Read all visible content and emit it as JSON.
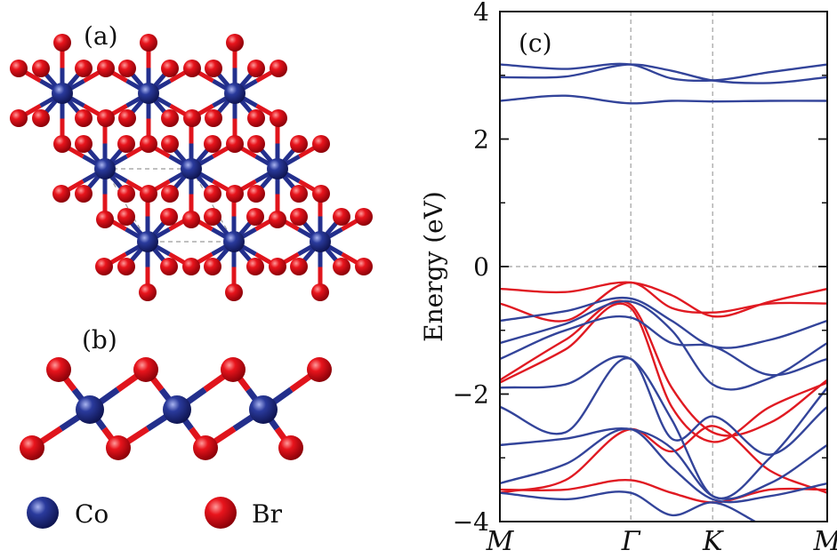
{
  "panels": {
    "a": "(a)",
    "b": "(b)",
    "c": "(c)"
  },
  "legend": [
    {
      "label": "Co",
      "color": "#232f8c"
    },
    {
      "label": "Br",
      "color": "#e0141c"
    }
  ],
  "colors": {
    "co_atom": "#232f8c",
    "br_atom": "#e0141c",
    "band_blue": "#33449a",
    "band_red": "#e01a22"
  },
  "chart_data": {
    "type": "line",
    "title": "",
    "xlabel": "",
    "ylabel": "Energy (eV)",
    "ylim": [
      -4,
      4
    ],
    "xlim": [
      0,
      4
    ],
    "y_ticks": [
      {
        "value": -4,
        "label": "−4"
      },
      {
        "value": -2,
        "label": "−2"
      },
      {
        "value": 0,
        "label": "0"
      },
      {
        "value": 2,
        "label": "2"
      },
      {
        "value": 4,
        "label": "4"
      }
    ],
    "kpoints": [
      {
        "label": "M",
        "x": 0
      },
      {
        "label": "Γ",
        "x": 1.6
      },
      {
        "label": "K",
        "x": 2.6
      },
      {
        "label": "M",
        "x": 4
      }
    ],
    "grid": "dashed lines at Γ, K and E = 0",
    "series": [
      {
        "color": "blue",
        "x": [
          0,
          0.8,
          1.6,
          2.1,
          2.6,
          3.3,
          4
        ],
        "y": [
          3.17,
          3.1,
          3.17,
          2.95,
          2.92,
          3.05,
          3.17
        ]
      },
      {
        "color": "blue",
        "x": [
          0,
          0.8,
          1.6,
          2.1,
          2.6,
          3.3,
          4
        ],
        "y": [
          2.97,
          2.98,
          3.17,
          3.07,
          2.92,
          2.88,
          2.97
        ]
      },
      {
        "color": "blue",
        "x": [
          0,
          0.8,
          1.6,
          2.1,
          2.6,
          3.3,
          4
        ],
        "y": [
          2.6,
          2.68,
          2.56,
          2.6,
          2.59,
          2.6,
          2.6
        ]
      },
      {
        "color": "red",
        "x": [
          0,
          0.8,
          1.6,
          2.1,
          2.6,
          3.3,
          4
        ],
        "y": [
          -0.35,
          -0.4,
          -0.25,
          -0.45,
          -0.78,
          -0.55,
          -0.35
        ]
      },
      {
        "color": "red",
        "x": [
          0,
          0.8,
          1.6,
          2.1,
          2.6,
          3.3,
          4
        ],
        "y": [
          -0.58,
          -0.85,
          -0.25,
          -0.65,
          -0.72,
          -0.58,
          -0.58
        ]
      },
      {
        "color": "red",
        "x": [
          0,
          0.8,
          1.6,
          2.1,
          2.6,
          3.3,
          4
        ],
        "y": [
          -1.78,
          -1.15,
          -0.6,
          -1.9,
          -2.6,
          -2.45,
          -1.78
        ]
      },
      {
        "color": "red",
        "x": [
          0,
          0.8,
          1.6,
          2.1,
          2.6,
          3.3,
          4
        ],
        "y": [
          -1.82,
          -1.3,
          -0.65,
          -2.2,
          -2.75,
          -2.2,
          -1.82
        ]
      },
      {
        "color": "red",
        "x": [
          0,
          0.8,
          1.6,
          2.1,
          2.6,
          3.3,
          4
        ],
        "y": [
          -3.55,
          -3.35,
          -2.55,
          -2.9,
          -2.5,
          -3.2,
          -3.55
        ]
      },
      {
        "color": "red",
        "x": [
          0,
          0.8,
          1.6,
          2.1,
          2.6,
          3.3,
          4
        ],
        "y": [
          -3.5,
          -3.5,
          -3.35,
          -3.55,
          -3.7,
          -3.5,
          -3.5
        ]
      },
      {
        "color": "blue",
        "x": [
          0,
          0.8,
          1.6,
          2.1,
          2.6,
          3.3,
          4
        ],
        "y": [
          -0.85,
          -0.7,
          -0.5,
          -0.85,
          -1.25,
          -1.15,
          -0.85
        ]
      },
      {
        "color": "blue",
        "x": [
          0,
          0.8,
          1.6,
          2.1,
          2.6,
          3.3,
          4
        ],
        "y": [
          -1.2,
          -0.9,
          -0.55,
          -1.0,
          -1.85,
          -1.75,
          -1.2
        ]
      },
      {
        "color": "blue",
        "x": [
          0,
          0.8,
          1.6,
          2.1,
          2.6,
          3.3,
          4
        ],
        "y": [
          -1.45,
          -1.0,
          -0.8,
          -1.2,
          -1.25,
          -1.7,
          -1.45
        ]
      },
      {
        "color": "blue",
        "x": [
          0,
          0.8,
          1.6,
          2.1,
          2.6,
          3.3,
          4
        ],
        "y": [
          -1.9,
          -1.85,
          -1.45,
          -2.4,
          -3.6,
          -3.0,
          -1.9
        ]
      },
      {
        "color": "blue",
        "x": [
          0,
          0.8,
          1.6,
          2.1,
          2.6,
          3.3,
          4
        ],
        "y": [
          -2.2,
          -2.6,
          -1.45,
          -2.7,
          -2.35,
          -2.95,
          -2.2
        ]
      },
      {
        "color": "blue",
        "x": [
          0,
          0.8,
          1.6,
          2.1,
          2.6,
          3.3,
          4
        ],
        "y": [
          -2.8,
          -2.7,
          -2.55,
          -2.85,
          -3.6,
          -3.4,
          -2.8
        ]
      },
      {
        "color": "blue",
        "x": [
          0,
          0.8,
          1.6,
          2.1,
          2.6,
          3.3,
          4
        ],
        "y": [
          -3.4,
          -3.1,
          -2.55,
          -3.15,
          -3.65,
          -3.6,
          -3.4
        ]
      },
      {
        "color": "blue",
        "x": [
          0,
          0.8,
          1.6,
          2.1,
          2.6,
          3.3,
          4
        ],
        "y": [
          -3.55,
          -3.65,
          -3.55,
          -3.9,
          -3.7,
          -4.1,
          -4.2
        ]
      }
    ]
  }
}
